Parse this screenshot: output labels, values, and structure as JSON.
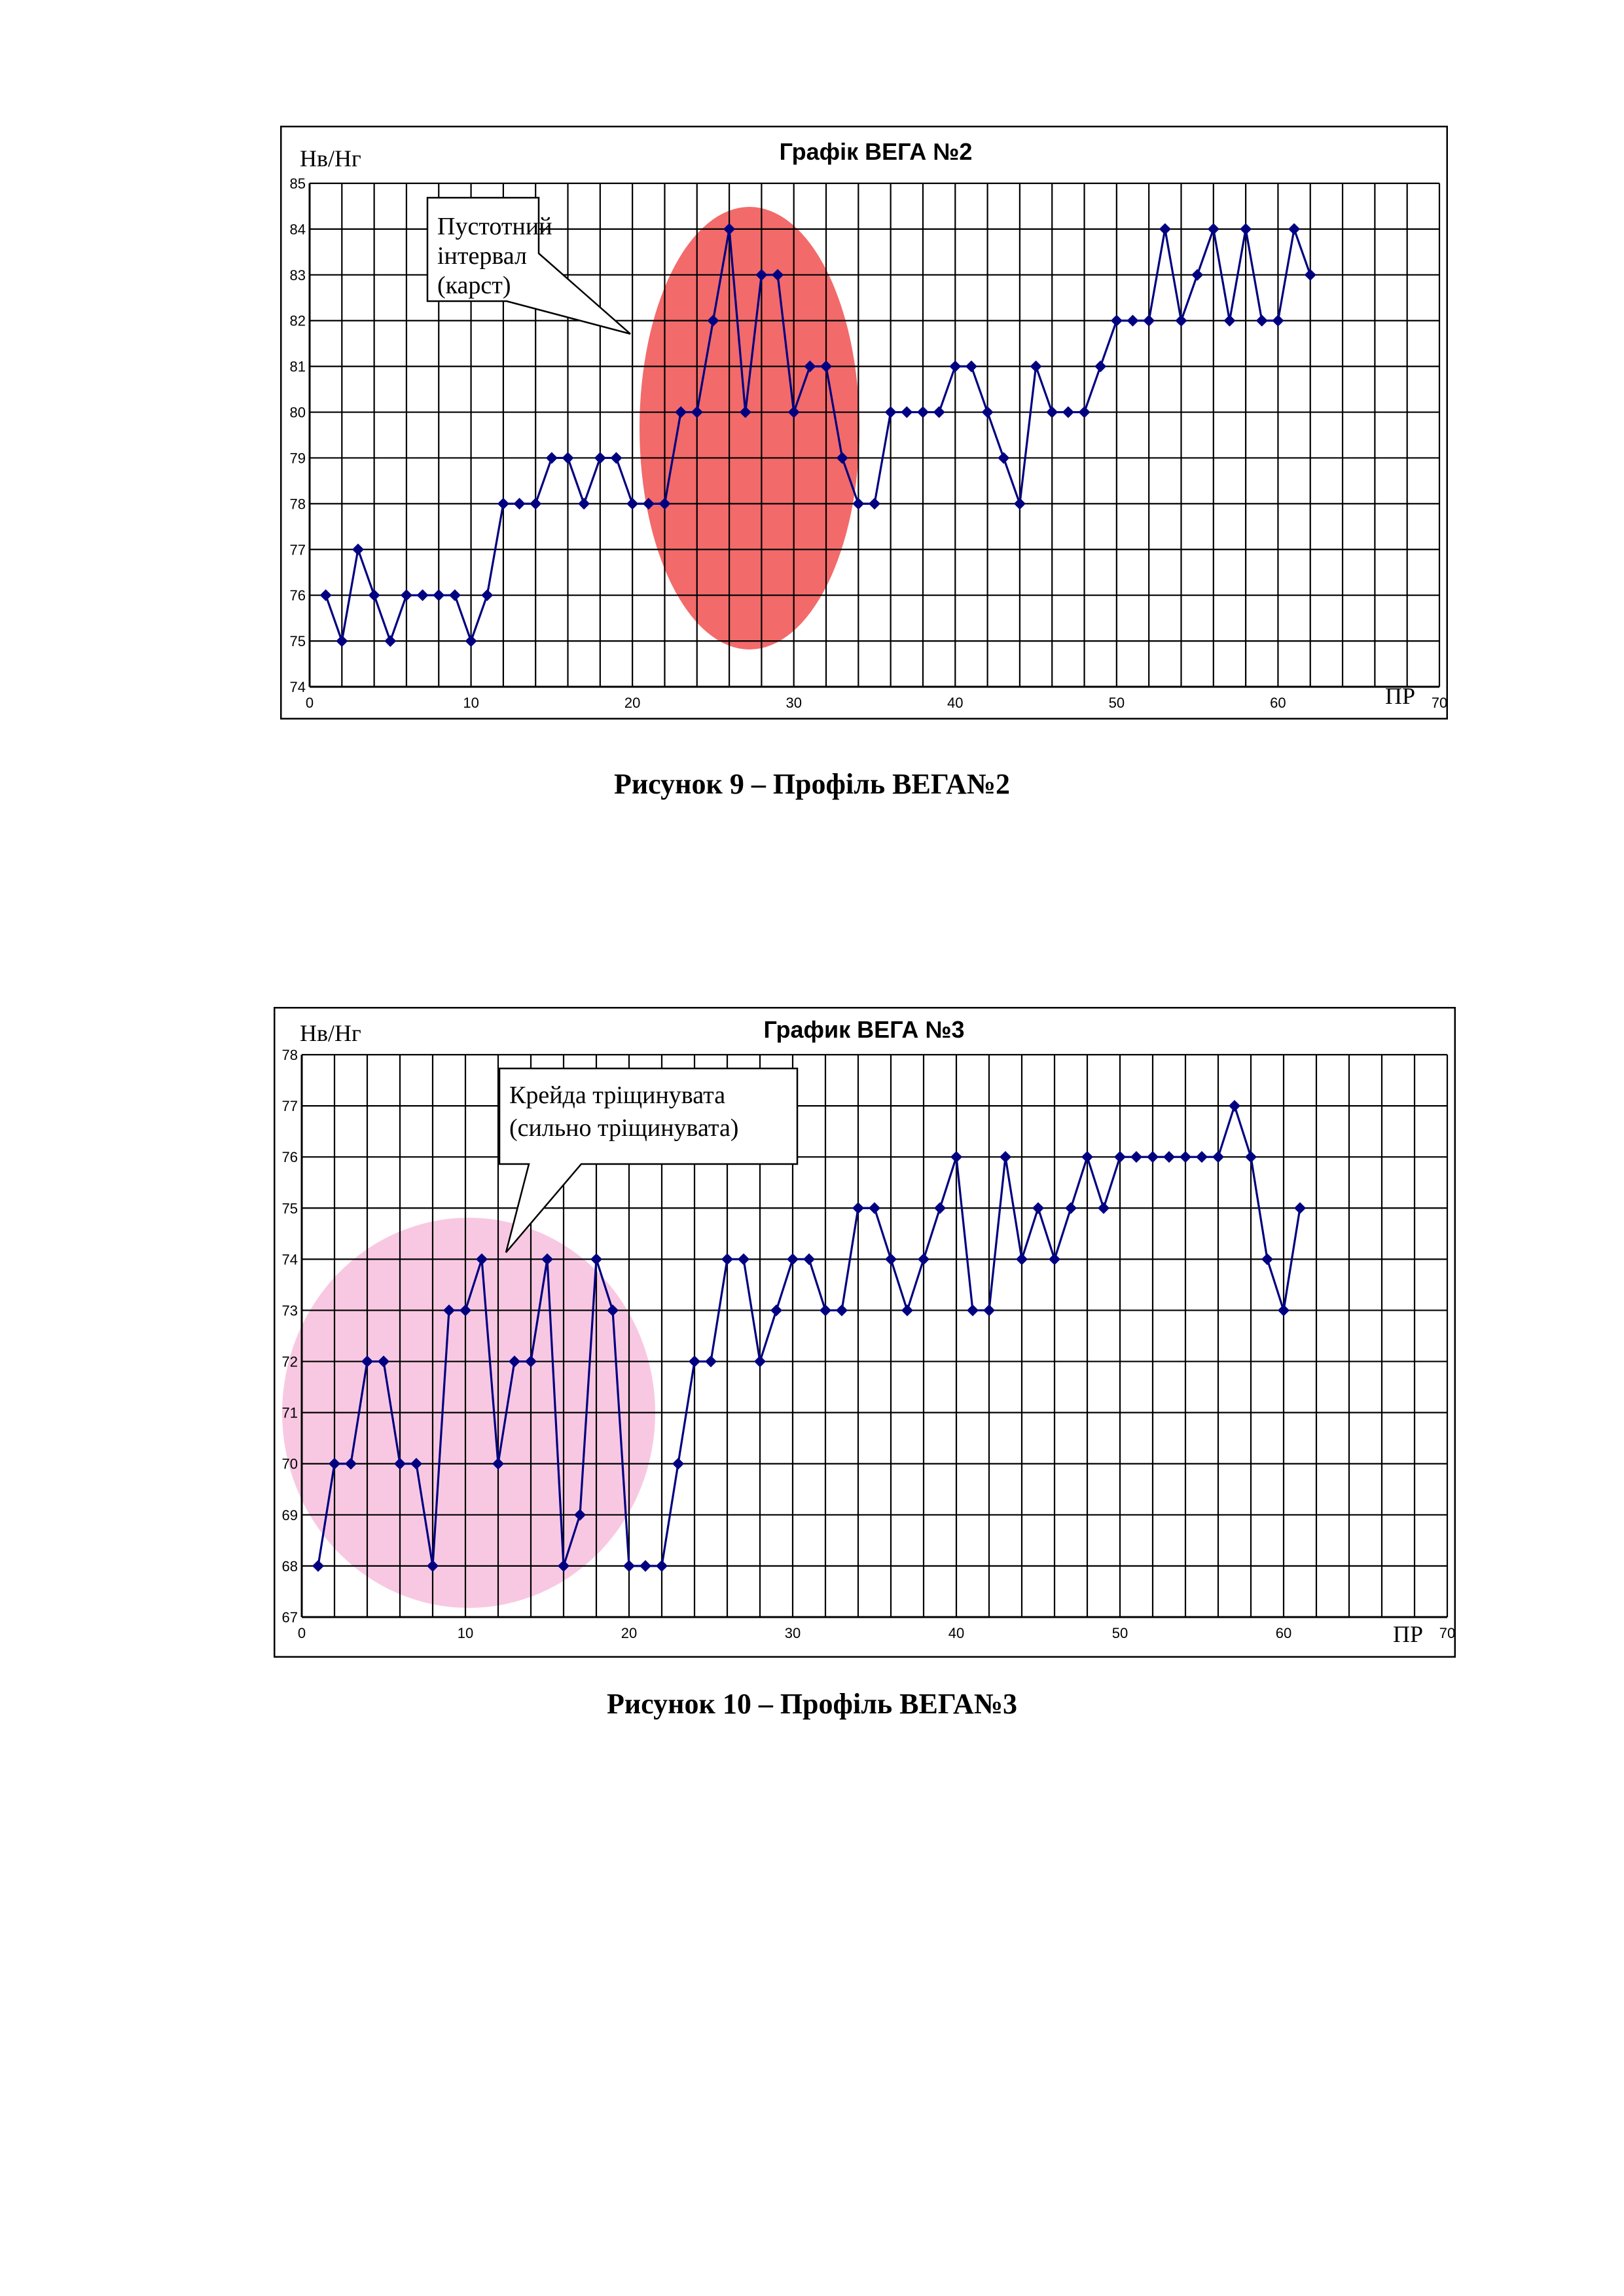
{
  "figures": [
    {
      "caption": "Рисунок 9 – Профіль ВЕГА№2",
      "chart_data": {
        "type": "line",
        "title": "Графік ВЕГА №2",
        "ylabel": "Нв/Нг",
        "xlabel": "ПР",
        "xlim": [
          0,
          70
        ],
        "ylim": [
          74,
          85
        ],
        "xticks": [
          0,
          10,
          20,
          30,
          40,
          50,
          60,
          70
        ],
        "yticks": [
          74,
          75,
          76,
          77,
          78,
          79,
          80,
          81,
          82,
          83,
          84,
          85
        ],
        "grid": true,
        "line_color": "#000080",
        "series": [
          {
            "x": [
              1,
              2,
              3,
              4,
              5,
              6,
              7,
              8,
              9,
              10,
              11,
              12,
              13,
              14,
              15,
              16,
              17,
              18,
              19,
              20,
              21,
              22,
              23,
              24,
              25,
              26,
              27,
              28,
              29,
              30,
              31,
              32,
              33,
              34,
              35,
              36,
              37,
              38,
              39,
              40,
              41,
              42,
              43,
              44,
              45,
              46,
              47,
              48,
              49,
              50,
              51,
              52,
              53,
              54,
              55,
              56,
              57,
              58,
              59,
              60,
              61,
              62
            ],
            "values": [
              76,
              75,
              77,
              76,
              75,
              76,
              76,
              76,
              76,
              75,
              76,
              78,
              78,
              78,
              79,
              79,
              78,
              79,
              79,
              78,
              78,
              78,
              80,
              80,
              82,
              84,
              80,
              83,
              83,
              80,
              81,
              81,
              79,
              78,
              78,
              80,
              80,
              80,
              80,
              81,
              81,
              80,
              79,
              78,
              81,
              80,
              80,
              80,
              81,
              82,
              82,
              82,
              84,
              82,
              83,
              84,
              82,
              84,
              82,
              82,
              84,
              83
            ]
          }
        ],
        "annotation": {
          "text_lines": [
            "Пустотний",
            "інтервал",
            "(карст)"
          ],
          "highlight_color": "#f05050"
        }
      }
    },
    {
      "caption": "Рисунок 10 – Профіль ВЕГА№3",
      "chart_data": {
        "type": "line",
        "title": "График ВЕГА №3",
        "ylabel": "Нв/Нг",
        "xlabel": "ПР",
        "xlim": [
          0,
          70
        ],
        "ylim": [
          67,
          78
        ],
        "xticks": [
          0,
          10,
          20,
          30,
          40,
          50,
          60,
          70
        ],
        "yticks": [
          67,
          68,
          69,
          70,
          71,
          72,
          73,
          74,
          75,
          76,
          77,
          78
        ],
        "grid": true,
        "line_color": "#000080",
        "series": [
          {
            "x": [
              1,
              2,
              3,
              4,
              5,
              6,
              7,
              8,
              9,
              10,
              11,
              12,
              13,
              14,
              15,
              16,
              17,
              18,
              19,
              20,
              21,
              22,
              23,
              24,
              25,
              26,
              27,
              28,
              29,
              30,
              31,
              32,
              33,
              34,
              35,
              36,
              37,
              38,
              39,
              40,
              41,
              42,
              43,
              44,
              45,
              46,
              47,
              48,
              49,
              50,
              51,
              52,
              53,
              54,
              55,
              56,
              57,
              58,
              59,
              60,
              61
            ],
            "values": [
              68,
              70,
              70,
              72,
              72,
              70,
              70,
              68,
              73,
              73,
              74,
              70,
              72,
              72,
              74,
              68,
              69,
              74,
              73,
              68,
              68,
              68,
              70,
              72,
              72,
              74,
              74,
              72,
              73,
              74,
              74,
              73,
              73,
              75,
              75,
              74,
              73,
              74,
              75,
              76,
              73,
              73,
              76,
              74,
              75,
              74,
              75,
              76,
              75,
              76,
              76,
              76,
              76,
              76,
              76,
              76,
              77,
              76,
              74,
              73,
              75
            ]
          }
        ],
        "annotation": {
          "text_lines": [
            "Крейда тріщинувата",
            "(сильно тріщинувата)"
          ],
          "highlight_color": "#f7bedd"
        }
      }
    }
  ]
}
